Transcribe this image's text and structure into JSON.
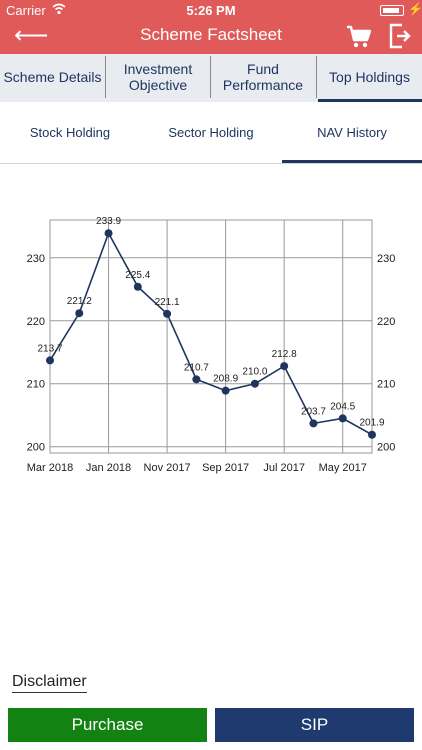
{
  "status_bar": {
    "carrier": "Carrier",
    "time": "5:26 PM"
  },
  "header": {
    "title": "Scheme Factsheet"
  },
  "tabs": [
    {
      "label": "Scheme Details"
    },
    {
      "label": "Investment Objective"
    },
    {
      "label": "Fund Performance"
    },
    {
      "label": "Top Holdings"
    }
  ],
  "active_tab": "Top Holdings",
  "sub_tabs": [
    {
      "label": "Stock Holding"
    },
    {
      "label": "Sector Holding"
    },
    {
      "label": "NAV History"
    }
  ],
  "active_sub_tab": "NAV History",
  "chart_data": {
    "type": "line",
    "categories": [
      "Mar 2018",
      "Feb 2018",
      "Jan 2018",
      "Dec 2017",
      "Nov 2017",
      "Oct 2017",
      "Sep 2017",
      "Aug 2017",
      "Jul 2017",
      "Jun 2017",
      "May 2017",
      "Apr 2017"
    ],
    "x_tick_labels": [
      "Mar 2018",
      "Jan 2018",
      "Nov 2017",
      "Sep 2017",
      "Jul 2017",
      "May 2017"
    ],
    "values": [
      213.7,
      221.2,
      233.9,
      225.4,
      221.1,
      210.7,
      208.9,
      210.0,
      212.8,
      203.7,
      204.5,
      201.9
    ],
    "data_labels": [
      "213.7",
      "221.2",
      "233.9",
      "225.4",
      "221.1",
      "210.7",
      "208.9",
      "210.0",
      "212.8",
      "203.7",
      "204.5",
      "201.9"
    ],
    "y_ticks": [
      200,
      210,
      220,
      230
    ],
    "ylim": [
      199,
      236
    ],
    "grid": true,
    "line_color": "#1f3560",
    "title": "",
    "xlabel": "",
    "ylabel": ""
  },
  "footer": {
    "disclaimer": "Disclaimer",
    "purchase_label": "Purchase",
    "sip_label": "SIP"
  },
  "colors": {
    "header": "#e05a5a",
    "accent": "#1f3560",
    "purchase": "#128212",
    "sip": "#1f3a6e",
    "tab_bg": "#e8ebf0"
  }
}
